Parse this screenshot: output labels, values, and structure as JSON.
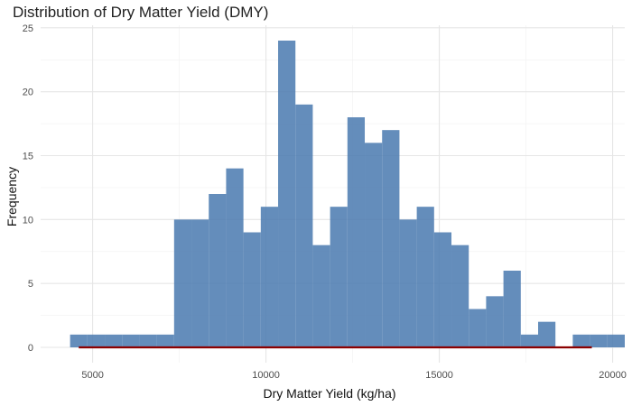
{
  "chart_data": {
    "type": "bar",
    "title": "Distribution of Dry Matter Yield (DMY)",
    "xlabel": "Dry Matter Yield (kg/ha)",
    "ylabel": "Frequency",
    "xlim": [
      3500,
      20350
    ],
    "ylim": [
      -1.2,
      25.2
    ],
    "x_ticks": [
      5000,
      10000,
      15000,
      20000
    ],
    "y_ticks": [
      0,
      5,
      10,
      15,
      20,
      25
    ],
    "grid": true,
    "bin_start": 4350,
    "bin_width": 500,
    "counts": [
      1,
      1,
      1,
      1,
      1,
      1,
      10,
      10,
      12,
      14,
      9,
      11,
      24,
      19,
      8,
      11,
      18,
      16,
      17,
      10,
      11,
      9,
      8,
      3,
      4,
      6,
      1,
      2,
      0,
      1,
      1,
      1
    ],
    "bar_color": "#4E7DB2",
    "density_line": {
      "x_start": 4600,
      "x_end": 19400,
      "y": 0,
      "color": "#8B0000"
    }
  }
}
